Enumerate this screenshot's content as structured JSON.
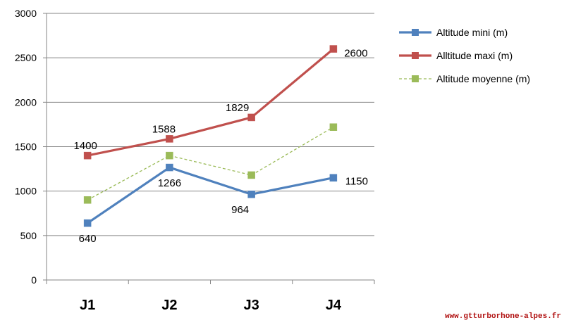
{
  "chart_data": {
    "type": "line",
    "categories": [
      "J1",
      "J2",
      "J3",
      "J4"
    ],
    "ylim": [
      0,
      3000
    ],
    "yticks": [
      0,
      500,
      1000,
      1500,
      2000,
      2500,
      3000
    ],
    "grid": true,
    "legend_position": "right",
    "series": [
      {
        "name": "Altitude mini (m)",
        "values": [
          640,
          1266,
          964,
          1150
        ],
        "labels": [
          "640",
          "1266",
          "964",
          "1150"
        ],
        "color": "#4f81bd",
        "style": "solid",
        "marker_color": "#4f81bd"
      },
      {
        "name": "Alltitude maxi (m)",
        "values": [
          1400,
          1588,
          1829,
          2600
        ],
        "labels": [
          "1400",
          "1588",
          "1829",
          "2600"
        ],
        "color": "#c0504d",
        "style": "solid",
        "marker_color": "#c0504d"
      },
      {
        "name": "Altitude moyenne (m)",
        "values": [
          900,
          1400,
          1180,
          1720
        ],
        "color": "#9bbb59",
        "style": "dashed",
        "marker_color": "#9bbb59"
      }
    ]
  },
  "watermark": "www.gtturborhone-alpes.fr"
}
